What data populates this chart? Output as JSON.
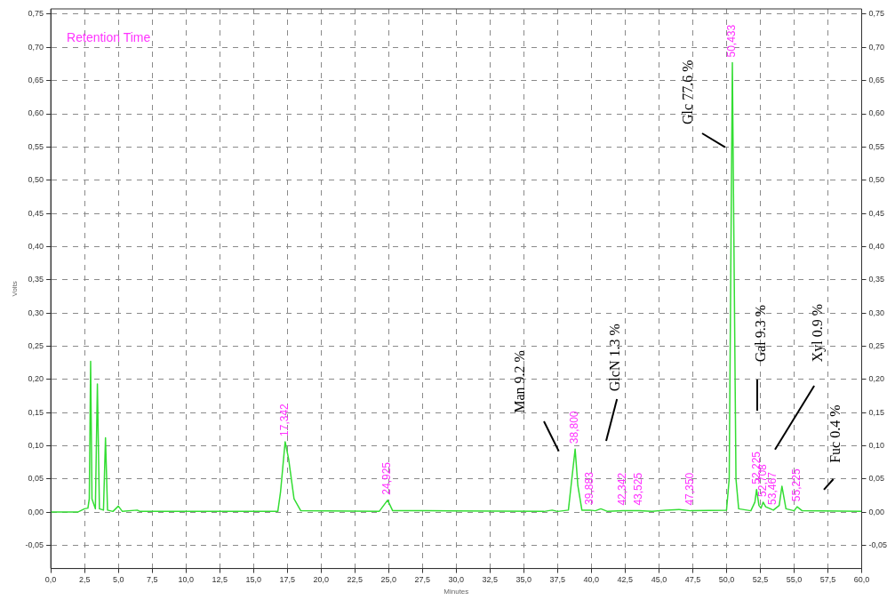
{
  "chart_data": {
    "type": "line",
    "xlabel": "Minutes",
    "ylabel": "Volts",
    "grid": true,
    "legend": false,
    "marker": "none",
    "line_style": "solid",
    "xlim": [
      0,
      60
    ],
    "xticks": [
      {
        "value": 0,
        "label": "0,0"
      },
      {
        "value": 2.5,
        "label": "2,5"
      },
      {
        "value": 5,
        "label": "5,0"
      },
      {
        "value": 7.5,
        "label": "7,5"
      },
      {
        "value": 10,
        "label": "10,0"
      },
      {
        "value": 12.5,
        "label": "12,5"
      },
      {
        "value": 15,
        "label": "15,0"
      },
      {
        "value": 17.5,
        "label": "17,5"
      },
      {
        "value": 20,
        "label": "20,0"
      },
      {
        "value": 22.5,
        "label": "22,5"
      },
      {
        "value": 25,
        "label": "25,0"
      },
      {
        "value": 27.5,
        "label": "27,5"
      },
      {
        "value": 30,
        "label": "30,0"
      },
      {
        "value": 32.5,
        "label": "32,5"
      },
      {
        "value": 35,
        "label": "35,0"
      },
      {
        "value": 37.5,
        "label": "37,5"
      },
      {
        "value": 40,
        "label": "40,0"
      },
      {
        "value": 42.5,
        "label": "42,5"
      },
      {
        "value": 45,
        "label": "45,0"
      },
      {
        "value": 47.5,
        "label": "47,5"
      },
      {
        "value": 50,
        "label": "50,0"
      },
      {
        "value": 52.5,
        "label": "52,5"
      },
      {
        "value": 55,
        "label": "55,0"
      },
      {
        "value": 57.5,
        "label": "57,5"
      },
      {
        "value": 60,
        "label": "60,0"
      }
    ],
    "ylim": [
      -0.085,
      0.758
    ],
    "yticks": [
      {
        "value": -0.05,
        "label": "-0,05"
      },
      {
        "value": 0,
        "label": "0,00"
      },
      {
        "value": 0.05,
        "label": "0,05"
      },
      {
        "value": 0.1,
        "label": "0,10"
      },
      {
        "value": 0.15,
        "label": "0,15"
      },
      {
        "value": 0.2,
        "label": "0,20"
      },
      {
        "value": 0.25,
        "label": "0,25"
      },
      {
        "value": 0.3,
        "label": "0,30"
      },
      {
        "value": 0.35,
        "label": "0,35"
      },
      {
        "value": 0.4,
        "label": "0,40"
      },
      {
        "value": 0.45,
        "label": "0,45"
      },
      {
        "value": 0.5,
        "label": "0,50"
      },
      {
        "value": 0.55,
        "label": "0,55"
      },
      {
        "value": 0.6,
        "label": "0,60"
      },
      {
        "value": 0.65,
        "label": "0,65"
      },
      {
        "value": 0.7,
        "label": "0,70"
      },
      {
        "value": 0.75,
        "label": "0,75"
      }
    ],
    "y2lim": [
      -0.085,
      0.758
    ],
    "y2ticks": [
      {
        "value": -0.05,
        "label": "-0,05"
      },
      {
        "value": 0,
        "label": "0,00"
      },
      {
        "value": 0.05,
        "label": "0,05"
      },
      {
        "value": 0.1,
        "label": "0,10"
      },
      {
        "value": 0.15,
        "label": "0,15"
      },
      {
        "value": 0.2,
        "label": "0,20"
      },
      {
        "value": 0.25,
        "label": "0,25"
      },
      {
        "value": 0.3,
        "label": "0,30"
      },
      {
        "value": 0.35,
        "label": "0,35"
      },
      {
        "value": 0.4,
        "label": "0,40"
      },
      {
        "value": 0.45,
        "label": "0,45"
      },
      {
        "value": 0.5,
        "label": "0,50"
      },
      {
        "value": 0.55,
        "label": "0,55"
      },
      {
        "value": 0.6,
        "label": "0,60"
      },
      {
        "value": 0.65,
        "label": "0,65"
      },
      {
        "value": 0.7,
        "label": "0,70"
      },
      {
        "value": 0.75,
        "label": "0,75"
      }
    ],
    "series": [
      {
        "color": "#33dd33",
        "x": [
          0,
          2.0,
          2.5,
          2.75,
          2.85,
          2.95,
          3.05,
          3.3,
          3.45,
          3.6,
          3.9,
          4.05,
          4.2,
          4.6,
          5.0,
          5.3,
          6.4,
          6.6,
          16.8,
          17.0,
          17.342,
          17.6,
          18.0,
          18.5,
          24.3,
          24.925,
          25.3,
          27.5,
          27.8,
          36.5,
          37.1,
          37.5,
          38.3,
          38.5,
          38.8,
          39.0,
          39.3,
          39.883,
          40.3,
          40.7,
          41.2,
          42.342,
          43.525,
          44.5,
          45.5,
          46.5,
          47.35,
          50.0,
          50.2,
          50.433,
          50.7,
          50.9,
          51.8,
          52.1,
          52.225,
          52.4,
          52.55,
          52.708,
          52.9,
          53.467,
          53.9,
          54.1,
          54.4,
          55.0,
          55.225,
          55.6,
          60
        ],
        "values": [
          0,
          0,
          0.005,
          0.006,
          0.02,
          0.227,
          0.02,
          0.005,
          0.193,
          0.005,
          0.003,
          0.112,
          0.003,
          0.001,
          0.009,
          0.001,
          0.003,
          0.001,
          0.001,
          0.03,
          0.106,
          0.08,
          0.02,
          0.002,
          0.001,
          0.018,
          0.002,
          0.002,
          0.002,
          0.001,
          0.003,
          0.001,
          0.003,
          0.04,
          0.095,
          0.04,
          0.003,
          0.003,
          0.002,
          0.005,
          0.001,
          0.002,
          0.002,
          0.001,
          0.003,
          0.004,
          0.002,
          0.003,
          0.05,
          0.677,
          0.05,
          0.005,
          0.002,
          0.015,
          0.034,
          0.01,
          0.006,
          0.015,
          0.008,
          0.003,
          0.01,
          0.039,
          0.005,
          0.002,
          0.008,
          0.002,
          0.001
        ]
      }
    ],
    "annotations": [
      "Retention Time",
      "Man 9.2 %",
      "GlcN 1.3 %",
      "Glc 77.6 %",
      "Gal 9.3 %",
      "Xyl 0.9 %",
      "Fuc 0.4 %",
      {
        "text": "17,342",
        "x": 17.342,
        "y": 0.106
      },
      {
        "text": "24,925",
        "x": 24.925,
        "y": 0.018
      },
      {
        "text": "38,800",
        "x": 38.8,
        "y": 0.095
      },
      {
        "text": "39,883",
        "x": 39.883,
        "y": 0.003
      },
      {
        "text": "42,342",
        "x": 42.342,
        "y": 0.002
      },
      {
        "text": "43,525",
        "x": 43.525,
        "y": 0.002
      },
      {
        "text": "47,350",
        "x": 47.35,
        "y": 0.002
      },
      {
        "text": "50,433",
        "x": 50.433,
        "y": 0.677
      },
      {
        "text": "52,225",
        "x": 52.225,
        "y": 0.034
      },
      {
        "text": "52,708",
        "x": 52.708,
        "y": 0.015
      },
      {
        "text": "53,467",
        "x": 53.467,
        "y": 0.003
      },
      {
        "text": "55,225",
        "x": 55.225,
        "y": 0.008
      }
    ]
  }
}
